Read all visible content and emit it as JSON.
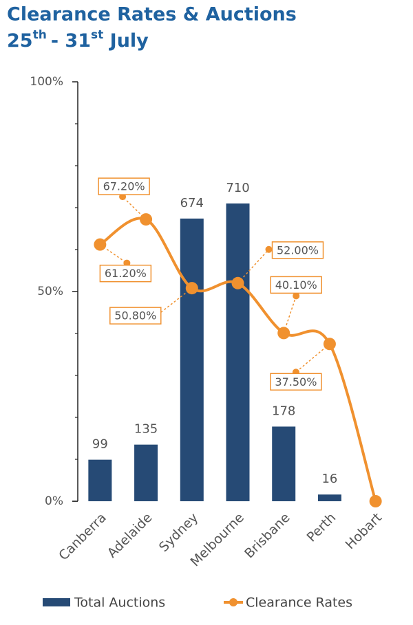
{
  "chart_data": {
    "type": "bar",
    "title": "Clearance Rates & Auctions",
    "subtitle": [
      "25",
      "th",
      "- 31",
      "st",
      " July"
    ],
    "categories": [
      "Canberra",
      "Adelaide",
      "Sydney",
      "Melbourne",
      "Brisbane",
      "Perth",
      "Hobart"
    ],
    "series": [
      {
        "name": "Total Auctions",
        "type": "bar",
        "axis": "y2",
        "color": "#264a75",
        "values": [
          99,
          135,
          674,
          710,
          178,
          16,
          null
        ]
      },
      {
        "name": "Clearance Rates",
        "type": "line",
        "color": "#f0912f",
        "values": [
          61.2,
          67.2,
          50.8,
          52.0,
          40.1,
          37.5,
          0
        ],
        "value_labels": [
          "61.20%",
          "67.20%",
          "50.80%",
          "52.00%",
          "40.10%",
          "37.50%",
          null
        ]
      }
    ],
    "ylim": [
      0,
      100
    ],
    "yticks": [
      {
        "value": 0,
        "label": "0%"
      },
      {
        "value": 50,
        "label": "50%"
      },
      {
        "value": 100,
        "label": "100%"
      }
    ],
    "yminorticks": [
      10,
      20,
      30,
      40,
      60,
      70,
      80,
      90
    ],
    "y2lim": [
      0,
      1000
    ],
    "legend": "bottom"
  }
}
